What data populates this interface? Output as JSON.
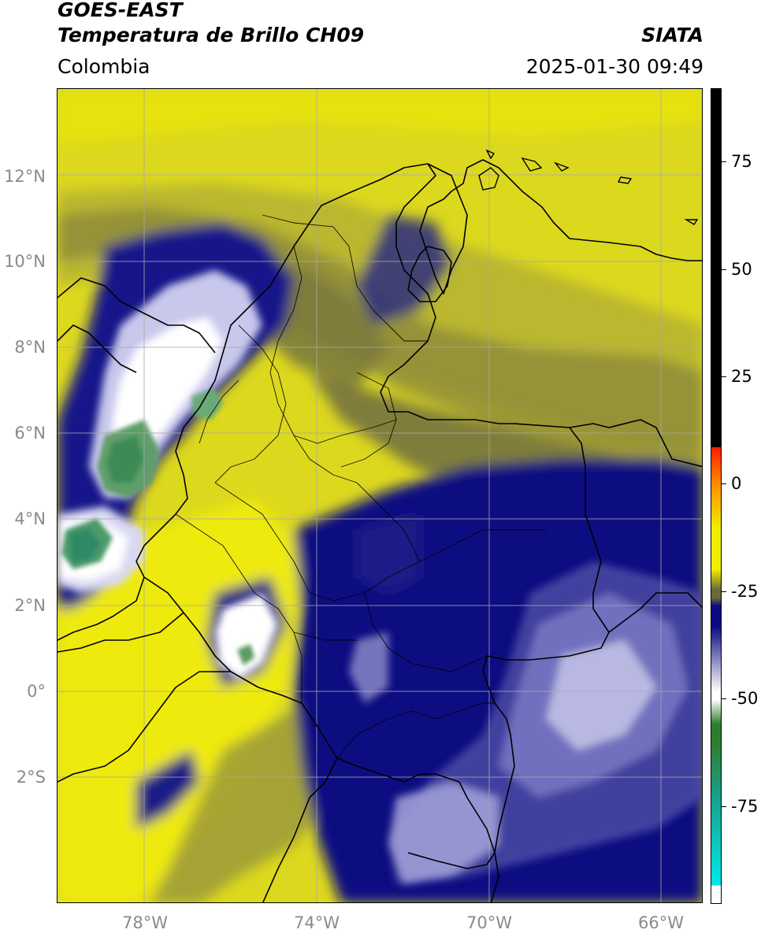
{
  "header": {
    "satellite": "GOES-EAST",
    "product": "Temperatura de Brillo CH09",
    "brand": "SIATA",
    "region": "Colombia",
    "datetime": "2025-01-30 09:49"
  },
  "map": {
    "lat_labels": [
      "12°N",
      "10°N",
      "8°N",
      "6°N",
      "4°N",
      "2°N",
      "0°",
      "2°S"
    ],
    "lon_labels": [
      "78°W",
      "74°W",
      "70°W",
      "66°W"
    ],
    "extent": {
      "lon_min": -80.0,
      "lon_max": -65.0,
      "lat_min": -4.9,
      "lat_max": 14.0
    },
    "gridline_color": "#aaaaaa"
  },
  "colorbar": {
    "labels": [
      "75",
      "50",
      "25",
      "0",
      "-25",
      "-50",
      "-75"
    ],
    "min": -100,
    "max": 90,
    "colors": {
      "black": "#000000",
      "red": "#ff1a00",
      "orange": "#ff8c00",
      "yellow": "#f2ee00",
      "olive": "#6a6a3a",
      "navy": "#0b0b80",
      "white": "#ffffff",
      "green": "#2e7d2e",
      "teal": "#1aa08a",
      "cyan": "#00e5e5"
    }
  }
}
